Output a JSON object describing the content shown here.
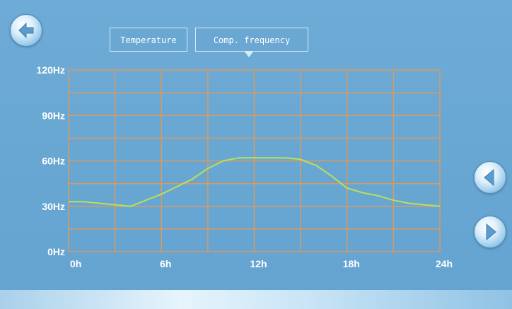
{
  "tabs": [
    {
      "label": "Temperature"
    },
    {
      "label": "Comp. frequency"
    }
  ],
  "icons": {
    "back": "back-arrow-icon",
    "prev": "chevron-left-icon",
    "next": "chevron-right-icon"
  },
  "colors": {
    "background": "#6aa6d2",
    "grid": "#d79a63",
    "line": "#b9e05a"
  },
  "chart_data": {
    "type": "line",
    "x_ticks": [
      "0h",
      "6h",
      "12h",
      "18h",
      "24h"
    ],
    "y_ticks": [
      "0Hz",
      "30Hz",
      "60Hz",
      "90Hz",
      "120Hz"
    ],
    "xlim": [
      0,
      24
    ],
    "ylim": [
      0,
      120
    ],
    "grid": true,
    "series": [
      {
        "x": [
          0,
          1,
          2,
          3,
          4,
          5,
          6,
          7,
          8,
          9,
          10,
          11,
          12,
          13,
          14,
          15,
          16,
          17,
          18,
          19,
          20,
          21,
          22,
          23,
          24
        ],
        "values": [
          33,
          33,
          32,
          31,
          30,
          34,
          38,
          43,
          48,
          55,
          60,
          62,
          62,
          62,
          62,
          61,
          57,
          50,
          42,
          39,
          37,
          34,
          32,
          31,
          30
        ]
      }
    ]
  }
}
